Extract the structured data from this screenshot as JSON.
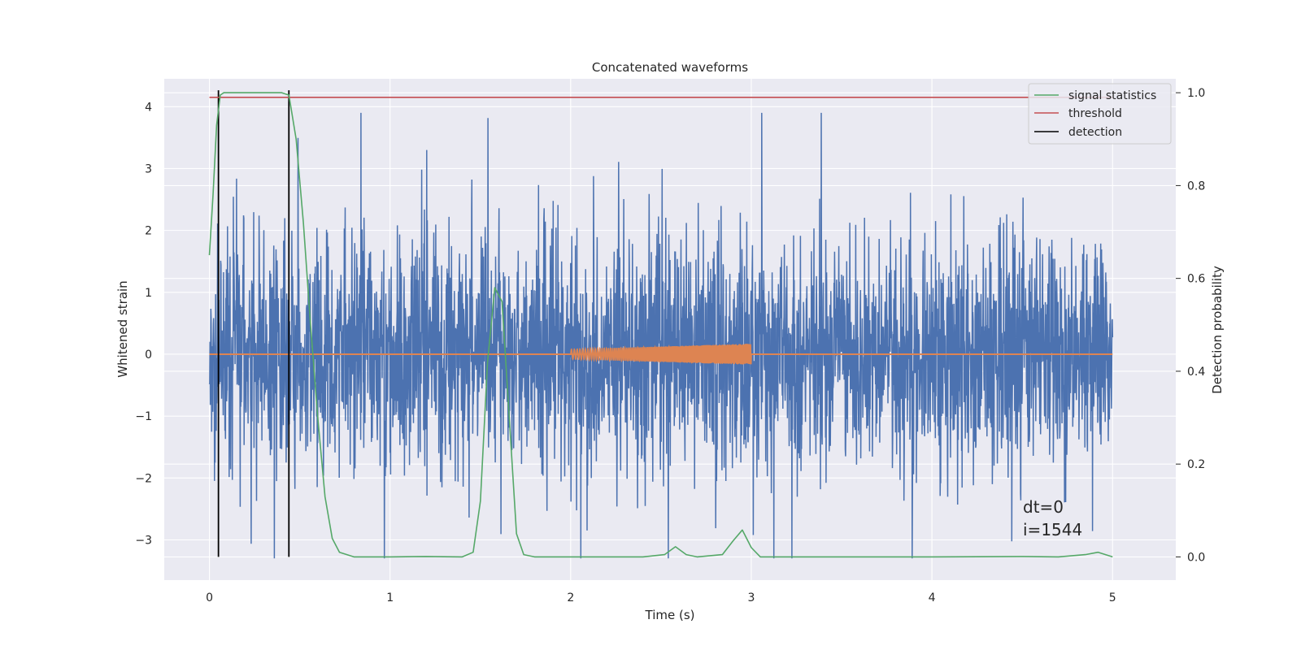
{
  "chart_data": {
    "type": "line",
    "title": "Concatenated waveforms",
    "xlabel": "Time (s)",
    "ylabel": "Whitened strain",
    "y2label": "Detection probability",
    "xlim": [
      -0.25,
      5.35
    ],
    "ylim": [
      -3.65,
      4.45
    ],
    "y2lim": [
      -0.05,
      1.03
    ],
    "xticks": [
      0,
      1,
      2,
      3,
      4,
      5
    ],
    "yticks": [
      -3,
      -2,
      -1,
      0,
      1,
      2,
      3,
      4
    ],
    "y2ticks": [
      0.0,
      0.2,
      0.4,
      0.6,
      0.8,
      1.0
    ],
    "xtick_labels": [
      "0",
      "1",
      "2",
      "3",
      "4",
      "5"
    ],
    "ytick_labels": [
      "−3",
      "−2",
      "−1",
      "0",
      "1",
      "2",
      "3",
      "4"
    ],
    "y2tick_labels": [
      "0.0",
      "0.2",
      "0.4",
      "0.6",
      "0.8",
      "1.0"
    ],
    "grid": true,
    "legend_position": "top-right",
    "legend": [
      {
        "label": "signal statistics",
        "color": "#55a868"
      },
      {
        "label": "threshold",
        "color": "#c44e52"
      },
      {
        "label": "detection",
        "color": "#000000"
      }
    ],
    "series": [
      {
        "role": "strain",
        "color": "#4c72b0",
        "axis": "left",
        "x_range": [
          0,
          5
        ],
        "envelope": [
          -3.3,
          3.9
        ],
        "typical_amplitude": 1.3
      },
      {
        "role": "injected-waveform",
        "color": "#dd8452",
        "axis": "left",
        "chirp_x": [
          2.0,
          3.0
        ],
        "chirp_amplitude": [
          0.08,
          0.17
        ],
        "zero_line_x": [
          0,
          5
        ]
      },
      {
        "name": "signal statistics",
        "color": "#55a868",
        "axis": "right",
        "x": [
          0,
          0.02,
          0.04,
          0.06,
          0.08,
          0.1,
          0.2,
          0.3,
          0.4,
          0.44,
          0.48,
          0.52,
          0.56,
          0.6,
          0.64,
          0.68,
          0.72,
          0.8,
          1.0,
          1.2,
          1.4,
          1.46,
          1.5,
          1.54,
          1.58,
          1.62,
          1.66,
          1.7,
          1.74,
          1.8,
          2.0,
          2.4,
          2.52,
          2.58,
          2.64,
          2.7,
          2.84,
          2.9,
          2.95,
          3.0,
          3.05,
          3.2,
          3.6,
          4.0,
          4.5,
          4.7,
          4.85,
          4.92,
          5.0
        ],
        "y": [
          0.65,
          0.78,
          0.93,
          0.995,
          1.0,
          1.0,
          1.0,
          1.0,
          1.0,
          0.995,
          0.9,
          0.72,
          0.5,
          0.3,
          0.13,
          0.04,
          0.01,
          0.0,
          0.0,
          0.001,
          0.0,
          0.01,
          0.12,
          0.42,
          0.58,
          0.55,
          0.3,
          0.05,
          0.005,
          0.0,
          0.0,
          0.0,
          0.005,
          0.022,
          0.005,
          0.0,
          0.005,
          0.035,
          0.058,
          0.02,
          0.0,
          0.0,
          0.0,
          0.0,
          0.001,
          0.0,
          0.005,
          0.01,
          0.0
        ]
      },
      {
        "name": "threshold",
        "color": "#c44e52",
        "axis": "right",
        "x": [
          0,
          5
        ],
        "y": [
          0.99,
          0.99
        ]
      },
      {
        "name": "detection",
        "color": "#000000",
        "axis": "right",
        "x": [
          0.05,
          0.44
        ],
        "y_span": [
          0.0,
          1.0
        ]
      }
    ],
    "annotations": [
      "dt=0",
      "i=1544"
    ]
  }
}
